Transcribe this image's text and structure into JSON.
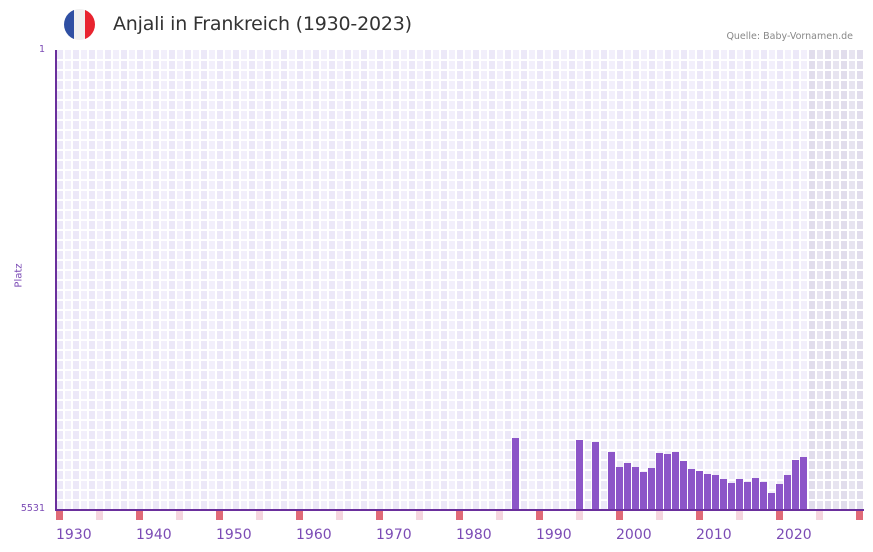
{
  "header": {
    "title": "Anjali in Frankreich (1930-2023)",
    "source": "Quelle: Baby-Vornamen.de",
    "flag": {
      "name": "france-flag-icon",
      "colors": [
        "#2f4fa3",
        "#f0f0f0",
        "#e8242f"
      ]
    }
  },
  "colors": {
    "bar": "#8c55c8",
    "axis": "#6a2f9c",
    "label": "#7b4bb5",
    "grid_bg_a": "#f2effb",
    "grid_bg_b": "#ece8f8",
    "future_bg_a": "#e7e4f0",
    "future_bg_b": "#e1ddec",
    "marker_decade": "#e06b78",
    "marker_half": "#f5d6df"
  },
  "chart_data": {
    "type": "bar",
    "title": "Anjali in Frankreich (1930-2023)",
    "subtitle": "Quelle: Baby-Vornamen.de",
    "xlabel": "",
    "ylabel": "Platz",
    "ylim": [
      5531,
      1
    ],
    "y_inverted": true,
    "y_ticks": [
      "1",
      "5531"
    ],
    "x_range": [
      1930,
      2030
    ],
    "x_ticks": [
      "1930",
      "1940",
      "1950",
      "1960",
      "1970",
      "1980",
      "1990",
      "2000",
      "2010",
      "2020"
    ],
    "future_shaded_from": 2024,
    "grid": true,
    "legend": null,
    "series": [
      {
        "name": "Platz",
        "points": [
          {
            "year": 1987,
            "rank": 4665
          },
          {
            "year": 1995,
            "rank": 4689
          },
          {
            "year": 1997,
            "rank": 4713
          },
          {
            "year": 1999,
            "rank": 4834
          },
          {
            "year": 2000,
            "rank": 5014
          },
          {
            "year": 2001,
            "rank": 4966
          },
          {
            "year": 2002,
            "rank": 5014
          },
          {
            "year": 2003,
            "rank": 5074
          },
          {
            "year": 2004,
            "rank": 5026
          },
          {
            "year": 2005,
            "rank": 4846
          },
          {
            "year": 2006,
            "rank": 4858
          },
          {
            "year": 2007,
            "rank": 4834
          },
          {
            "year": 2008,
            "rank": 4942
          },
          {
            "year": 2009,
            "rank": 5038
          },
          {
            "year": 2010,
            "rank": 5062
          },
          {
            "year": 2011,
            "rank": 5098
          },
          {
            "year": 2012,
            "rank": 5110
          },
          {
            "year": 2013,
            "rank": 5158
          },
          {
            "year": 2014,
            "rank": 5206
          },
          {
            "year": 2015,
            "rank": 5158
          },
          {
            "year": 2016,
            "rank": 5194
          },
          {
            "year": 2017,
            "rank": 5146
          },
          {
            "year": 2018,
            "rank": 5194
          },
          {
            "year": 2019,
            "rank": 5327
          },
          {
            "year": 2020,
            "rank": 5218
          },
          {
            "year": 2021,
            "rank": 5110
          },
          {
            "year": 2022,
            "rank": 4930
          },
          {
            "year": 2023,
            "rank": 4894
          }
        ]
      }
    ]
  }
}
